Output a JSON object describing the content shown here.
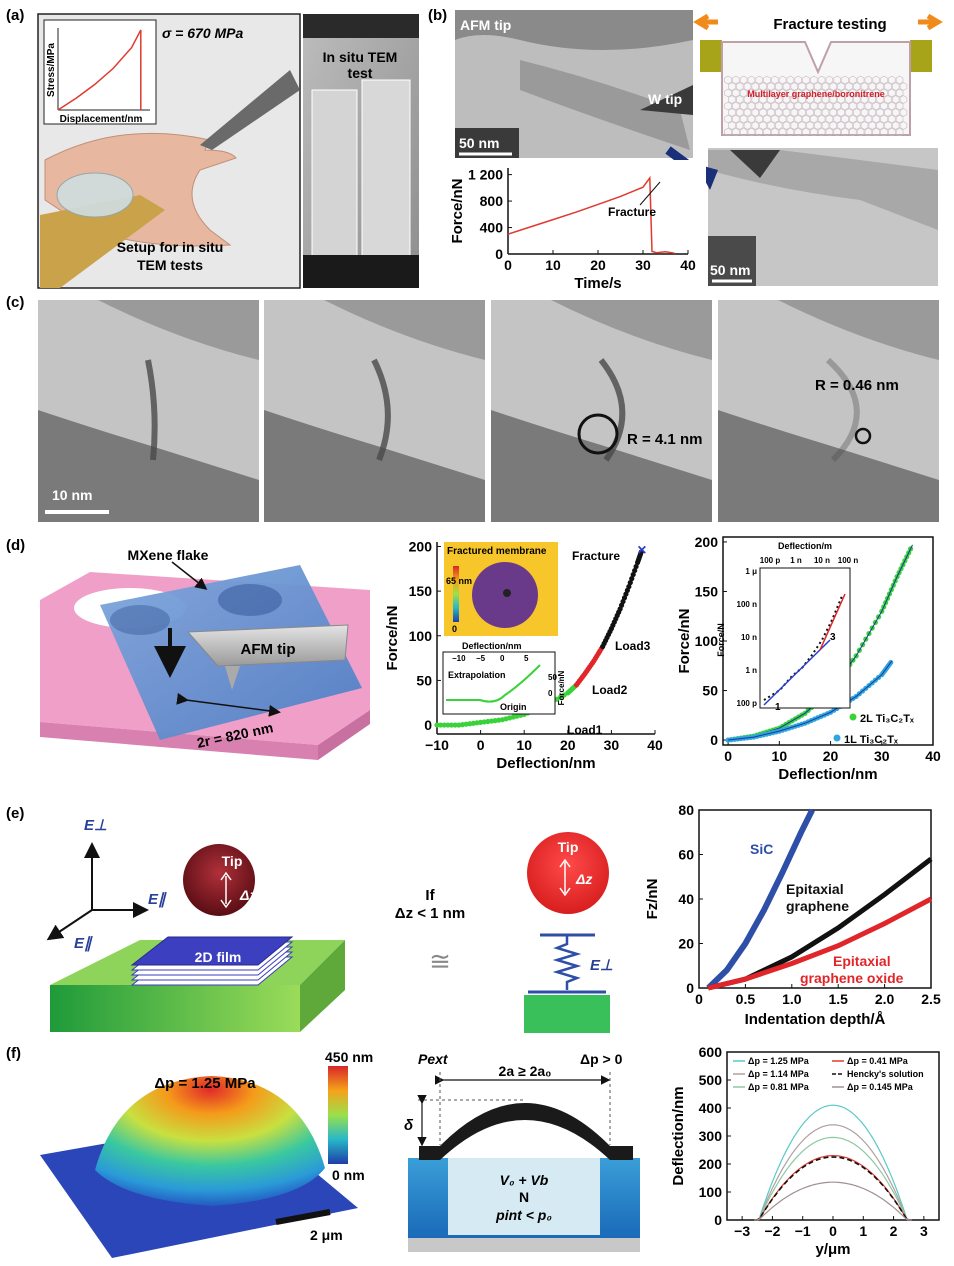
{
  "panels": {
    "a": {
      "label": "(a)",
      "sigma": "σ = 670 MPa",
      "inset_ylabel": "Stress/MPa",
      "inset_xlabel": "Displacement/nm",
      "tem_title_1": "In situ TEM",
      "tem_title_2": "test",
      "setup_1": "Setup for in situ",
      "setup_2": "TEM tests"
    },
    "b": {
      "label": "(b)",
      "afm_tip": "AFM tip",
      "w_tip": "W tip",
      "scale_1": "50 nm",
      "scale_2": "50 nm",
      "fracture_testing": "Fracture testing",
      "material": "Multilayer graphene/boronitrene",
      "fracture_note": "Fracture"
    },
    "c": {
      "label": "(c)",
      "scale": "10 nm",
      "r1": "R = 4.1 nm",
      "r2": "R = 0.46 nm"
    },
    "d": {
      "label": "(d)",
      "mxene": "MXene flake",
      "afm_tip": "AFM tip",
      "diameter": "2r = 820 nm",
      "fractured": "Fractured membrane",
      "cbar_top": "65 nm",
      "cbar_bottom": "0",
      "fracture": "Fracture",
      "load1": "Load1",
      "load2": "Load2",
      "load3": "Load3",
      "extrapolation": "Extrapolation",
      "origin": "Origin",
      "inset_xlabel": "Deflection/nm",
      "inset_ylabel": "Force/nN",
      "inset_xticks": [
        "−10",
        "−5",
        "0",
        "5"
      ],
      "inset_yticks": [
        "50",
        "0"
      ],
      "log_xlabel": "Deflection/m",
      "log_ylabel": "Force/N",
      "log_xticks": [
        "100 p",
        "1 n",
        "10 n",
        "100 n"
      ],
      "log_yticks": [
        "1 μ",
        "100 n",
        "10 n",
        "1 n",
        "100 p"
      ],
      "log_mark_1": "1",
      "log_mark_3": "3",
      "legend_2l": "2L Ti₃C₂Tₓ",
      "legend_1l": "1L Ti₃C₂Tₓ"
    },
    "e": {
      "label": "(e)",
      "e_perp": "E⊥",
      "e_par_1": "E∥",
      "e_par_2": "E∥",
      "tip_1": "Tip",
      "dz_1": "Δz",
      "film": "2D film",
      "cond_1": "If",
      "cond_2": "Δz < 1 nm",
      "approx": "≅",
      "tip_2": "Tip",
      "dz_2": "Δz",
      "spring_e": "E⊥",
      "sic": "SiC",
      "epi_1": "Epitaxial",
      "epi_2": "graphene",
      "epo_1": "Epitaxial",
      "epo_2": "graphene oxide"
    },
    "f": {
      "label": "(f)",
      "dp": "Δp = 1.25 MPa",
      "cbar_top": "450 nm",
      "cbar_bottom": "0 nm",
      "scale": "2 μm",
      "p_ext": "Pext",
      "dp_pos": "Δp > 0",
      "width": "2a ≥ 2a₀",
      "delta": "δ",
      "v": "V₀ + Vb",
      "n": "N",
      "pint": "pint < p₀"
    }
  },
  "chart_data": [
    {
      "id": "a-inset",
      "type": "line",
      "xlabel": "Displacement/nm",
      "ylabel": "Stress/MPa",
      "series": [
        {
          "x": [
            0,
            0.2,
            0.4,
            0.6,
            0.8,
            0.9,
            0.9
          ],
          "y": [
            0,
            0.15,
            0.32,
            0.52,
            0.78,
            1.0,
            0
          ]
        }
      ],
      "color": "#e03a2f"
    },
    {
      "id": "b",
      "type": "line",
      "xlabel": "Time/s",
      "ylabel": "Force/nN",
      "xlim": [
        0,
        40
      ],
      "ylim": [
        0,
        1300
      ],
      "xticks": [
        "0",
        "10",
        "20",
        "30",
        "40"
      ],
      "yticks": [
        "0",
        "400",
        "800",
        "1 200"
      ],
      "series": [
        {
          "x": [
            0,
            5,
            10,
            15,
            20,
            25,
            30,
            31.5,
            32,
            33,
            35,
            37
          ],
          "y": [
            300,
            410,
            520,
            630,
            750,
            870,
            1010,
            1150,
            40,
            20,
            35,
            10
          ]
        }
      ],
      "color": "#e03a2f"
    },
    {
      "id": "d-main",
      "type": "scatter",
      "xlabel": "Deflection/nm",
      "ylabel": "Force/nN",
      "xlim": [
        -10,
        40
      ],
      "ylim": [
        -10,
        205
      ],
      "xticks": [
        "−10",
        "0",
        "10",
        "20",
        "30",
        "40"
      ],
      "yticks": [
        "0",
        "50",
        "100",
        "150",
        "200"
      ],
      "series": [
        {
          "name": "Load1",
          "x": [
            -10,
            -5,
            0,
            5,
            10,
            15,
            20,
            22
          ],
          "y": [
            0,
            0,
            3,
            6,
            12,
            22,
            36,
            45
          ],
          "color": "#3ad23a"
        },
        {
          "name": "Load2",
          "x": [
            22,
            24,
            26,
            28
          ],
          "y": [
            45,
            58,
            72,
            88
          ],
          "color": "#e0262a"
        },
        {
          "name": "Load3",
          "x": [
            28,
            30,
            32,
            34,
            36,
            37
          ],
          "y": [
            88,
            108,
            130,
            155,
            182,
            196
          ],
          "color": "#111111"
        }
      ]
    },
    {
      "id": "d-right",
      "type": "scatter",
      "xlabel": "Deflection/nm",
      "ylabel": "Force/nN",
      "xlim": [
        -1,
        40
      ],
      "ylim": [
        -5,
        205
      ],
      "xticks": [
        "0",
        "10",
        "20",
        "30",
        "40"
      ],
      "yticks": [
        "0",
        "50",
        "100",
        "150",
        "200"
      ],
      "series": [
        {
          "name": "2L Ti₃C₂Tₓ",
          "x": [
            0,
            5,
            10,
            15,
            20,
            25,
            30,
            33,
            36
          ],
          "y": [
            0,
            4,
            12,
            27,
            50,
            85,
            130,
            165,
            197
          ],
          "color": "#3ad23a"
        },
        {
          "name": "1L Ti₃C₂Tₓ",
          "x": [
            0,
            5,
            10,
            15,
            20,
            25,
            30,
            32
          ],
          "y": [
            0,
            3,
            9,
            17,
            28,
            44,
            66,
            80
          ],
          "color": "#2fa6e0"
        }
      ]
    },
    {
      "id": "e",
      "type": "line",
      "xlabel": "Indentation depth/Å",
      "ylabel": "Fz/nN",
      "xlim": [
        0,
        2.5
      ],
      "ylim": [
        0,
        80
      ],
      "xticks": [
        "0",
        "0.5",
        "1.0",
        "1.5",
        "2.0",
        "2.5"
      ],
      "yticks": [
        "0",
        "20",
        "40",
        "60",
        "80"
      ],
      "series": [
        {
          "name": "SiC",
          "x": [
            0.1,
            0.3,
            0.5,
            0.7,
            0.9,
            1.1,
            1.22
          ],
          "y": [
            0,
            8,
            20,
            35,
            52,
            70,
            80
          ],
          "color": "#2e4fa8"
        },
        {
          "name": "Epitaxial graphene",
          "x": [
            0.1,
            0.5,
            1.0,
            1.5,
            2.0,
            2.5
          ],
          "y": [
            0,
            4,
            14,
            27,
            42,
            58
          ],
          "color": "#111111"
        },
        {
          "name": "Epitaxial graphene oxide",
          "x": [
            0.1,
            0.5,
            1.0,
            1.5,
            2.0,
            2.5
          ],
          "y": [
            0,
            4,
            11,
            19,
            29,
            40
          ],
          "color": "#e0262a"
        }
      ]
    },
    {
      "id": "f",
      "type": "line",
      "xlabel": "y/μm",
      "ylabel": "Deflection/nm",
      "xlim": [
        -3.5,
        3.5
      ],
      "ylim": [
        0,
        600
      ],
      "xticks": [
        "−3",
        "−2",
        "−1",
        "0",
        "1",
        "2",
        "3"
      ],
      "yticks": [
        "0",
        "100",
        "200",
        "300",
        "400",
        "500",
        "600"
      ],
      "series": [
        {
          "name": "Δp = 1.25 MPa",
          "peak": 410,
          "color": "#5bc8c8"
        },
        {
          "name": "Δp = 1.14 MPa",
          "peak": 340,
          "color": "#b0a0a0"
        },
        {
          "name": "Δp = 0.81 MPa",
          "peak": 295,
          "color": "#8cc8a0"
        },
        {
          "name": "Δp = 0.41 MPa",
          "peak": 230,
          "color": "#e03a2f"
        },
        {
          "name": "Hencky's solution",
          "peak": 225,
          "color": "#111111",
          "dashed": true
        },
        {
          "name": "Δp = 0.145 MPa",
          "peak": 135,
          "color": "#a09090"
        }
      ]
    }
  ]
}
